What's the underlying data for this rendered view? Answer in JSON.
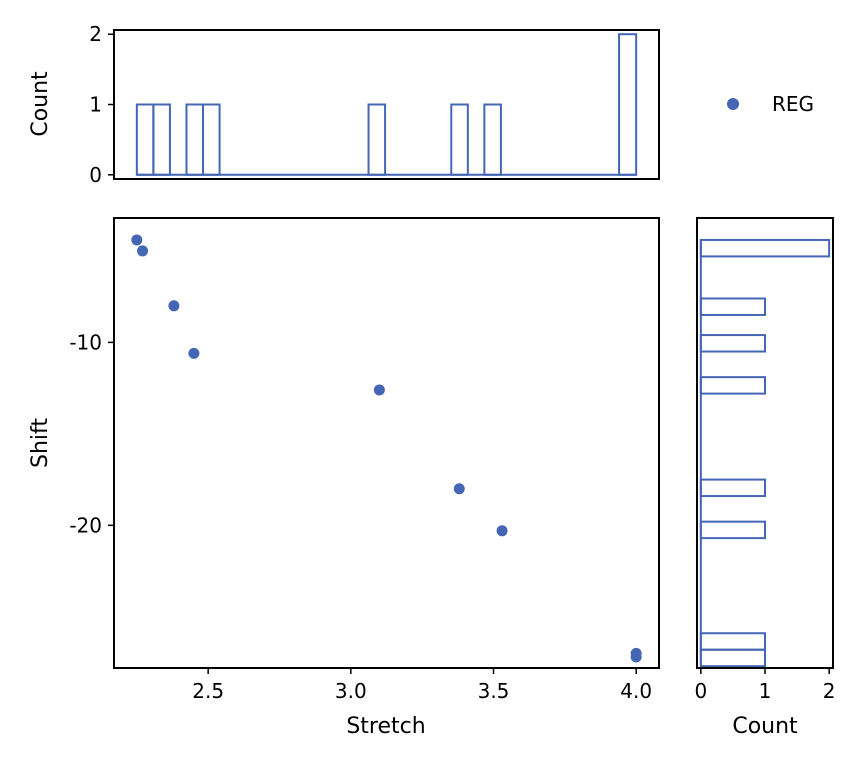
{
  "chart_data": [
    {
      "panel": "scatter",
      "type": "scatter",
      "xlabel": "Stretch",
      "ylabel": "Shift",
      "xlim": [
        2.17,
        4.08
      ],
      "ylim": [
        -27.8,
        -3.2
      ],
      "x_ticks": [
        2.5,
        3.0,
        3.5,
        4.0
      ],
      "x_tick_labels": [
        "2.5",
        "3.0",
        "3.5",
        "4.0"
      ],
      "y_ticks": [
        -10,
        -20
      ],
      "y_tick_labels": [
        "-10",
        "-20"
      ],
      "series": [
        {
          "name": "REG",
          "color": "#4466b5",
          "points": [
            {
              "x": 2.25,
              "y": -4.4
            },
            {
              "x": 2.27,
              "y": -5.0
            },
            {
              "x": 2.38,
              "y": -8.0
            },
            {
              "x": 2.45,
              "y": -10.6
            },
            {
              "x": 3.1,
              "y": -12.6
            },
            {
              "x": 3.38,
              "y": -18.0
            },
            {
              "x": 3.53,
              "y": -20.3
            },
            {
              "x": 4.0,
              "y": -27.0
            },
            {
              "x": 4.0,
              "y": -27.2
            }
          ]
        }
      ],
      "grid": false,
      "legend": {
        "position": "top-right",
        "entries": [
          "REG"
        ]
      }
    },
    {
      "panel": "top-histogram",
      "type": "bar",
      "ylabel": "Count",
      "ylim": [
        -0.06,
        2.06
      ],
      "y_ticks": [
        0,
        1,
        2
      ],
      "y_tick_labels": [
        "0",
        "1",
        "2"
      ],
      "bins": [
        {
          "x0": 2.25,
          "x1": 2.308,
          "count": 1
        },
        {
          "x0": 2.308,
          "x1": 2.366,
          "count": 1
        },
        {
          "x0": 2.424,
          "x1": 2.482,
          "count": 1
        },
        {
          "x0": 2.482,
          "x1": 2.54,
          "count": 1
        },
        {
          "x0": 3.062,
          "x1": 3.12,
          "count": 1
        },
        {
          "x0": 3.352,
          "x1": 3.41,
          "count": 1
        },
        {
          "x0": 3.468,
          "x1": 3.526,
          "count": 1
        },
        {
          "x0": 3.94,
          "x1": 4.0,
          "count": 2
        }
      ],
      "baseline": [
        2.25,
        4.0
      ],
      "color": "#4466b5"
    },
    {
      "panel": "right-histogram",
      "type": "bar",
      "orientation": "horizontal",
      "xlabel": "Count",
      "xlim": [
        -0.06,
        2.06
      ],
      "x_ticks": [
        0,
        1,
        2
      ],
      "x_tick_labels": [
        "0",
        "1",
        "2"
      ],
      "bins": [
        {
          "y0": -4.4,
          "y1": -5.3,
          "count": 2
        },
        {
          "y0": -7.6,
          "y1": -8.5,
          "count": 1
        },
        {
          "y0": -9.6,
          "y1": -10.5,
          "count": 1
        },
        {
          "y0": -11.9,
          "y1": -12.8,
          "count": 1
        },
        {
          "y0": -17.5,
          "y1": -18.4,
          "count": 1
        },
        {
          "y0": -19.8,
          "y1": -20.7,
          "count": 1
        },
        {
          "y0": -25.9,
          "y1": -26.8,
          "count": 1
        },
        {
          "y0": -26.8,
          "y1": -27.7,
          "count": 1
        }
      ],
      "baseline": [
        -4.4,
        -27.7
      ],
      "color": "#4466b5"
    }
  ]
}
